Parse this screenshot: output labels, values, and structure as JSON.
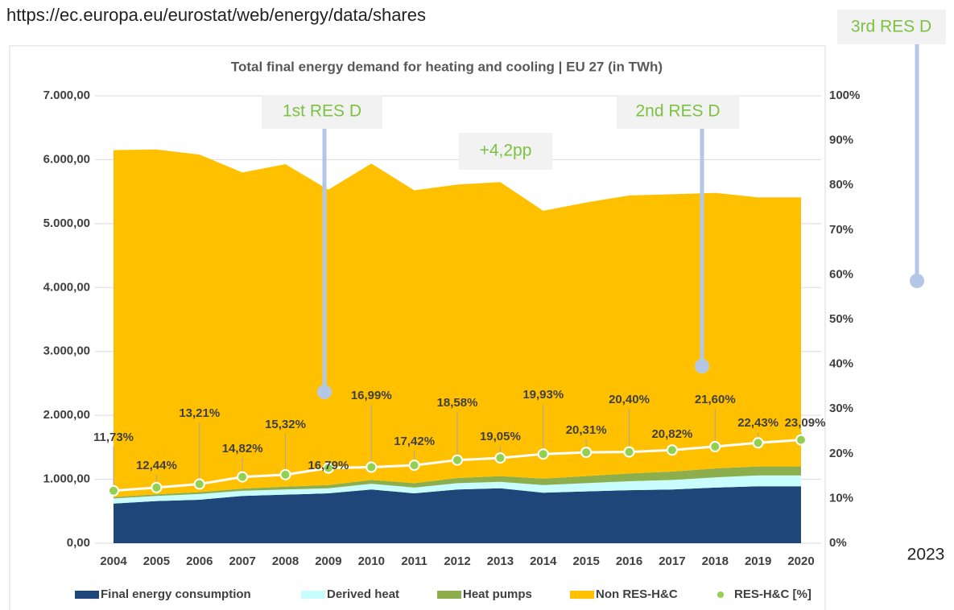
{
  "source_url": "https://ec.europa.eu/eurostat/web/energy/data/shares",
  "chart_data": {
    "type": "stacked_area_line",
    "title": "Total final energy demand for heating and cooling | EU 27 (in TWh)",
    "categories": [
      "2004",
      "2005",
      "2006",
      "2007",
      "2008",
      "2009",
      "2010",
      "2011",
      "2012",
      "2013",
      "2014",
      "2015",
      "2016",
      "2017",
      "2018",
      "2019",
      "2020"
    ],
    "series": [
      {
        "name": "Final energy consumption",
        "color": "#1f4678",
        "values": [
          620,
          660,
          680,
          740,
          760,
          780,
          840,
          780,
          840,
          860,
          790,
          810,
          830,
          840,
          870,
          890,
          890
        ]
      },
      {
        "name": "Derived heat",
        "color": "#c9fcfc",
        "values": [
          80,
          80,
          90,
          80,
          80,
          80,
          90,
          90,
          100,
          100,
          120,
          130,
          140,
          150,
          160,
          170,
          170
        ]
      },
      {
        "name": "Heat pumps",
        "color": "#8cae4d",
        "values": [
          20,
          25,
          30,
          35,
          45,
          50,
          60,
          70,
          80,
          90,
          100,
          110,
          120,
          130,
          140,
          140,
          140
        ]
      },
      {
        "name": "Non RES-H&C",
        "color": "#ffc000",
        "values": [
          5430,
          5395,
          5280,
          4945,
          5045,
          4620,
          4950,
          4580,
          4590,
          4600,
          4190,
          4280,
          4350,
          4340,
          4310,
          4210,
          4210
        ]
      },
      {
        "name": "RES-H&C [%]",
        "color": "#92d050",
        "axis": "y2",
        "values": [
          11.73,
          12.44,
          13.21,
          14.82,
          15.32,
          16.79,
          16.99,
          17.42,
          18.58,
          19.05,
          19.93,
          20.31,
          20.4,
          20.82,
          21.6,
          22.43,
          23.09
        ],
        "value_labels": [
          "11,73%",
          "12,44%",
          "13,21%",
          "14,82%",
          "15,32%",
          "16,79%",
          "16,99%",
          "17,42%",
          "18,58%",
          "19,05%",
          "19,93%",
          "20,31%",
          "20,40%",
          "20,82%",
          "21,60%",
          "22,43%",
          "23,09%"
        ]
      }
    ],
    "ylim": [
      0,
      7000
    ],
    "yticks": [
      {
        "value": 0,
        "label": "0,00"
      },
      {
        "value": 1000,
        "label": "1.000,00"
      },
      {
        "value": 2000,
        "label": "2.000,00"
      },
      {
        "value": 3000,
        "label": "3.000,00"
      },
      {
        "value": 4000,
        "label": "4.000,00"
      },
      {
        "value": 5000,
        "label": "5.000,00"
      },
      {
        "value": 6000,
        "label": "6.000,00"
      },
      {
        "value": 7000,
        "label": "7.000,00"
      }
    ],
    "y2lim": [
      0,
      100
    ],
    "y2ticks": [
      {
        "value": 0,
        "label": "0%"
      },
      {
        "value": 10,
        "label": "10%"
      },
      {
        "value": 20,
        "label": "20%"
      },
      {
        "value": 30,
        "label": "30%"
      },
      {
        "value": 40,
        "label": "40%"
      },
      {
        "value": 50,
        "label": "50%"
      },
      {
        "value": 60,
        "label": "60%"
      },
      {
        "value": 70,
        "label": "70%"
      },
      {
        "value": 80,
        "label": "80%"
      },
      {
        "value": 90,
        "label": "90%"
      },
      {
        "value": 100,
        "label": "100%"
      }
    ],
    "grid": true,
    "legend": "bottom",
    "annotations": [
      "1st RES D",
      "2nd RES D",
      "+4,2pp",
      "3rd RES D",
      "2023"
    ]
  }
}
